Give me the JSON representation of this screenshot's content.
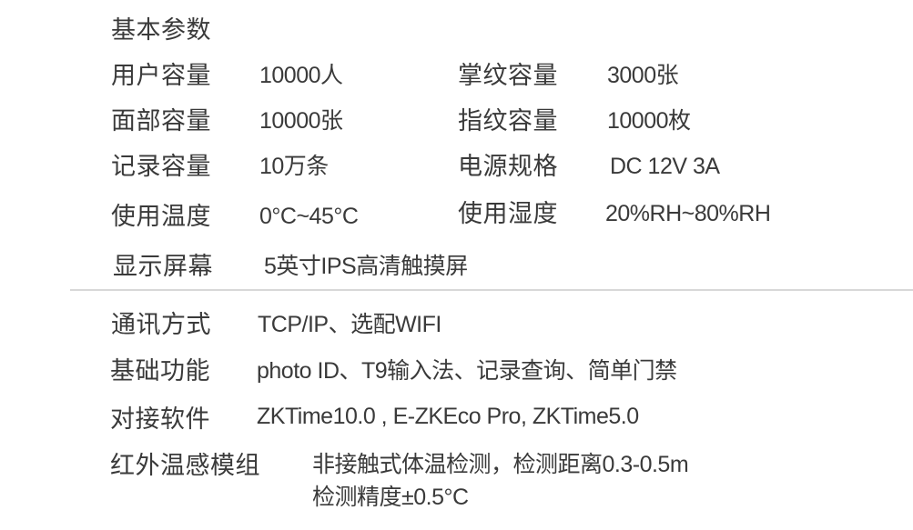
{
  "section_title": "基本参数",
  "specs": [
    {
      "label": "用户容量",
      "value": "10000人"
    },
    {
      "label": "掌纹容量",
      "value": "3000张"
    },
    {
      "label": "面部容量",
      "value": "10000张"
    },
    {
      "label": "指纹容量",
      "value": "10000枚"
    },
    {
      "label": "记录容量",
      "value": "10万条"
    },
    {
      "label": "电源规格",
      "value": "DC 12V 3A"
    },
    {
      "label": "使用温度",
      "value": "0°C~45°C"
    },
    {
      "label": "使用湿度",
      "value": "20%RH~80%RH"
    },
    {
      "label": "显示屏幕",
      "value": "5英寸IPS高清触摸屏"
    }
  ],
  "features": [
    {
      "label": "通讯方式",
      "value": "TCP/IP、选配WIFI"
    },
    {
      "label": "基础功能",
      "value": "photo ID、T9输入法、记录查询、简单门禁"
    },
    {
      "label": "对接软件",
      "value": "ZKTime10.0 , E-ZKEco Pro, ZKTime5.0"
    },
    {
      "label": "红外温感模组",
      "value": "非接触式体温检测，检测距离0.3-0.5m",
      "value_line2": "检测精度±0.5°C"
    }
  ]
}
